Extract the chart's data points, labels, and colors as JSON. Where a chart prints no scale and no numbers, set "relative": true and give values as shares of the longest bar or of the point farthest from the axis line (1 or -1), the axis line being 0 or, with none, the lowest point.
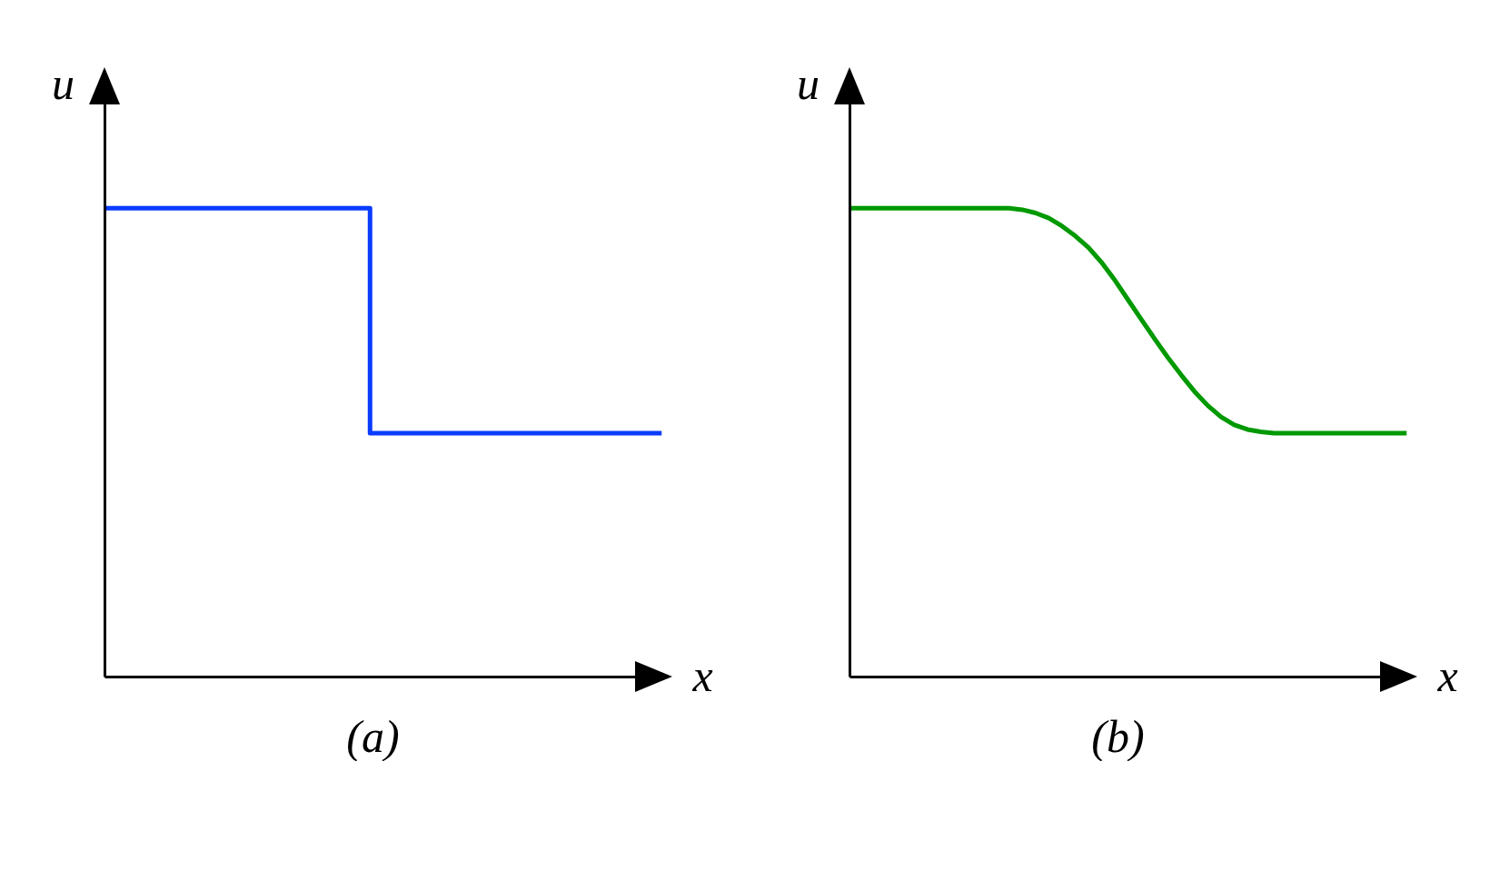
{
  "chart_data": [
    {
      "type": "step",
      "title": "(a)",
      "xlabel": "x",
      "ylabel": "u",
      "relative": true,
      "categories": [
        null,
        null,
        null,
        null,
        null,
        null,
        null,
        null,
        null,
        null,
        null,
        null,
        null,
        null,
        null,
        null,
        null,
        null,
        null,
        null,
        null,
        null
      ],
      "values": [
        1,
        1,
        1,
        1,
        1,
        1,
        1,
        1,
        1,
        1,
        0.52,
        0.52,
        0.52,
        0.52,
        0.52,
        0.52,
        0.52,
        0.52,
        0.52,
        0.52,
        0.52,
        0.52
      ],
      "color": "#0a3cff"
    },
    {
      "type": "line",
      "title": "(b)",
      "xlabel": "x",
      "ylabel": "u",
      "relative": true,
      "categories": [
        null,
        null,
        null,
        null,
        null,
        null,
        null,
        null,
        null,
        null,
        null,
        null,
        null,
        null,
        null,
        null,
        null,
        null,
        null,
        null,
        null,
        null,
        null,
        null,
        null,
        null,
        null,
        null,
        null,
        null,
        null,
        null,
        null,
        null,
        null,
        null,
        null,
        null,
        null,
        null,
        null,
        null,
        null
      ],
      "values": [
        1,
        1,
        1,
        1,
        1,
        1,
        1,
        1,
        1,
        1,
        1,
        1,
        1,
        0.997,
        0.99,
        0.979,
        0.962,
        0.941,
        0.916,
        0.884,
        0.846,
        0.804,
        0.762,
        0.721,
        0.681,
        0.644,
        0.609,
        0.579,
        0.555,
        0.538,
        0.528,
        0.523,
        0.52,
        0.52,
        0.52,
        0.52,
        0.52,
        0.52,
        0.52,
        0.52,
        0.52,
        0.52,
        0.52
      ],
      "color": "#009900"
    }
  ]
}
